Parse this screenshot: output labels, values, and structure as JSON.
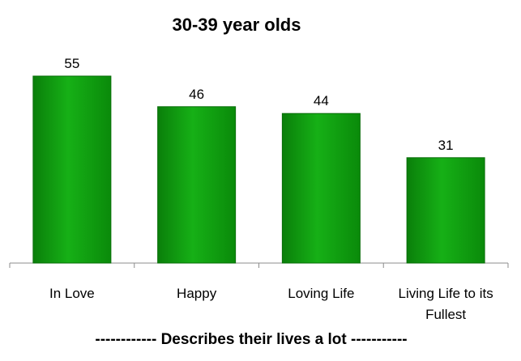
{
  "chart_data": {
    "type": "bar",
    "title": "30-39 year olds",
    "xlabel": "------------ Describes their lives a lot -----------",
    "ylabel": "",
    "categories": [
      "In Love",
      "Happy",
      "Loving Life",
      "Living Life to its Fullest"
    ],
    "values": [
      55,
      46,
      44,
      31
    ],
    "ylim": [
      0,
      60
    ],
    "grid": false,
    "bar_color": "#0f9e0f"
  }
}
